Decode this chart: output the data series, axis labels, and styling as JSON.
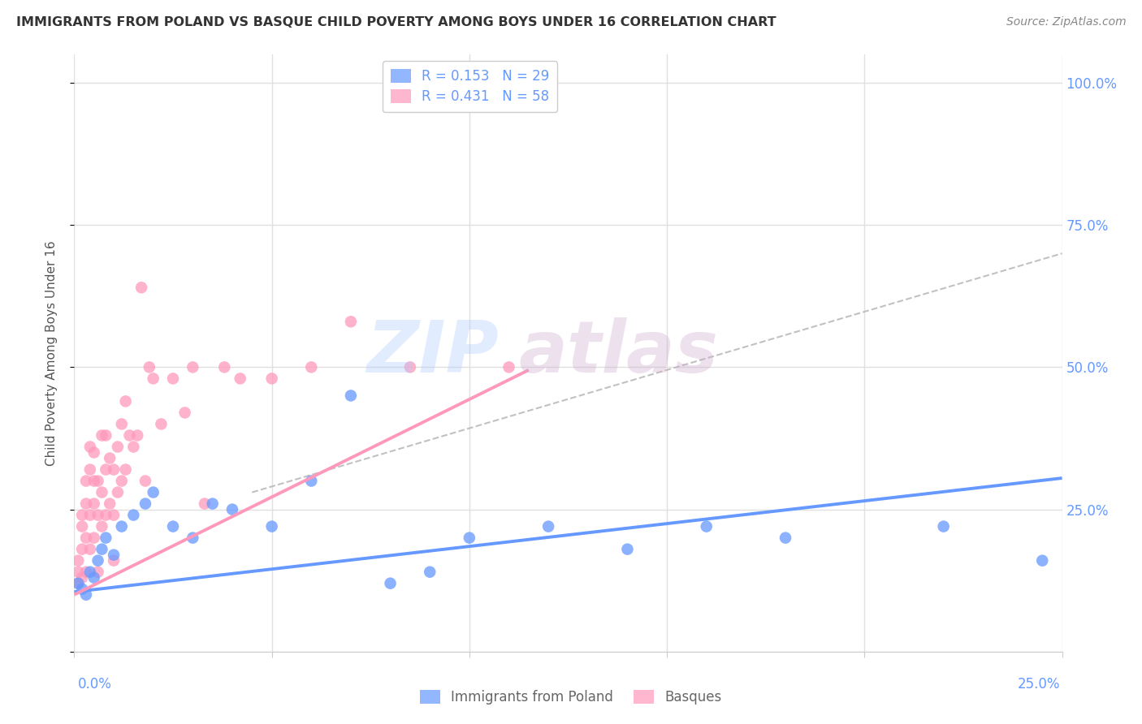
{
  "title": "IMMIGRANTS FROM POLAND VS BASQUE CHILD POVERTY AMONG BOYS UNDER 16 CORRELATION CHART",
  "source": "Source: ZipAtlas.com",
  "ylabel": "Child Poverty Among Boys Under 16",
  "xlim": [
    0.0,
    0.25
  ],
  "ylim": [
    0.0,
    1.05
  ],
  "blue_color": "#6699ff",
  "pink_color": "#ff99bb",
  "legend_blue_label": "Immigrants from Poland",
  "legend_pink_label": "Basques",
  "R_blue": "0.153",
  "N_blue": "29",
  "R_pink": "0.431",
  "N_pink": "58",
  "watermark_zip": "ZIP",
  "watermark_atlas": "atlas",
  "background_color": "#ffffff",
  "grid_color": "#e0e0e0",
  "ytick_vals": [
    0.0,
    0.25,
    0.5,
    0.75,
    1.0
  ],
  "ytick_labels": [
    "",
    "25.0%",
    "50.0%",
    "75.0%",
    "100.0%"
  ],
  "xtick_vals": [
    0.0,
    0.05,
    0.1,
    0.15,
    0.2,
    0.25
  ],
  "blue_x": [
    0.001,
    0.002,
    0.003,
    0.004,
    0.005,
    0.006,
    0.007,
    0.008,
    0.01,
    0.012,
    0.015,
    0.018,
    0.02,
    0.025,
    0.03,
    0.035,
    0.04,
    0.05,
    0.06,
    0.07,
    0.08,
    0.09,
    0.1,
    0.12,
    0.14,
    0.16,
    0.18,
    0.22,
    0.245
  ],
  "blue_y": [
    0.12,
    0.11,
    0.1,
    0.14,
    0.13,
    0.16,
    0.18,
    0.2,
    0.17,
    0.22,
    0.24,
    0.26,
    0.28,
    0.22,
    0.2,
    0.26,
    0.25,
    0.22,
    0.3,
    0.45,
    0.12,
    0.14,
    0.2,
    0.22,
    0.18,
    0.22,
    0.2,
    0.22,
    0.16
  ],
  "pink_x": [
    0.001,
    0.001,
    0.001,
    0.002,
    0.002,
    0.002,
    0.002,
    0.003,
    0.003,
    0.003,
    0.003,
    0.004,
    0.004,
    0.004,
    0.004,
    0.005,
    0.005,
    0.005,
    0.005,
    0.006,
    0.006,
    0.006,
    0.007,
    0.007,
    0.007,
    0.008,
    0.008,
    0.008,
    0.009,
    0.009,
    0.01,
    0.01,
    0.01,
    0.011,
    0.011,
    0.012,
    0.012,
    0.013,
    0.013,
    0.014,
    0.015,
    0.016,
    0.017,
    0.018,
    0.019,
    0.02,
    0.022,
    0.025,
    0.028,
    0.03,
    0.033,
    0.038,
    0.042,
    0.05,
    0.06,
    0.07,
    0.085,
    0.11
  ],
  "pink_y": [
    0.12,
    0.14,
    0.16,
    0.13,
    0.18,
    0.22,
    0.24,
    0.14,
    0.2,
    0.26,
    0.3,
    0.18,
    0.24,
    0.32,
    0.36,
    0.2,
    0.26,
    0.3,
    0.35,
    0.14,
    0.24,
    0.3,
    0.22,
    0.28,
    0.38,
    0.24,
    0.32,
    0.38,
    0.26,
    0.34,
    0.16,
    0.24,
    0.32,
    0.28,
    0.36,
    0.3,
    0.4,
    0.32,
    0.44,
    0.38,
    0.36,
    0.38,
    0.64,
    0.3,
    0.5,
    0.48,
    0.4,
    0.48,
    0.42,
    0.5,
    0.26,
    0.5,
    0.48,
    0.48,
    0.5,
    0.58,
    0.5,
    0.5
  ],
  "blue_line_x0": 0.0,
  "blue_line_y0": 0.105,
  "blue_line_x1": 0.25,
  "blue_line_y1": 0.305,
  "pink_line_x0": 0.0,
  "pink_line_y0": 0.1,
  "pink_line_x1": 0.115,
  "pink_line_y1": 0.495,
  "dash_line_x0": 0.045,
  "dash_line_y0": 0.28,
  "dash_line_x1": 0.25,
  "dash_line_y1": 0.7
}
